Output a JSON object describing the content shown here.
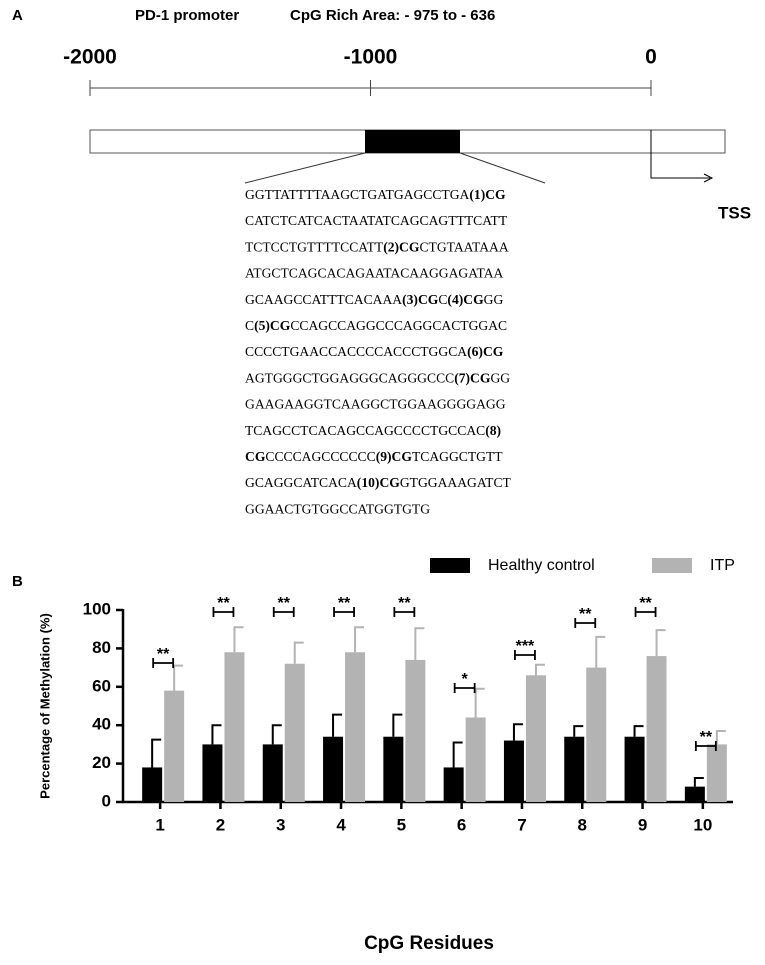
{
  "panel_a": {
    "label": "A",
    "title": "PD-1 promoter",
    "subtitle": "CpG Rich Area: - 975 to - 636",
    "ticks": [
      -2000,
      -1000,
      0
    ],
    "tss_label": "TSS",
    "sequence": [
      [
        {
          "text": "GGTTATTTTAAGCTGATGAGCCTGA",
          "bold": false
        },
        {
          "text": "(1)CG",
          "bold": true
        }
      ],
      [
        {
          "text": "CATCTCATCACTAATATCAGCAGTTTCATT",
          "bold": false
        }
      ],
      [
        {
          "text": "TCTCCTGTTTTCCATT",
          "bold": false
        },
        {
          "text": "(2)CG",
          "bold": true
        },
        {
          "text": "CTGTAATAAA",
          "bold": false
        }
      ],
      [
        {
          "text": "ATGCTCAGCACAGAATACAAGGAGATAA",
          "bold": false
        }
      ],
      [
        {
          "text": "GCAAGCCATTTCACAAA",
          "bold": false
        },
        {
          "text": "(3)CG",
          "bold": true
        },
        {
          "text": "C",
          "bold": false
        },
        {
          "text": "(4)CG",
          "bold": true
        },
        {
          "text": "GG",
          "bold": false
        }
      ],
      [
        {
          "text": "C",
          "bold": false
        },
        {
          "text": "(5)CG",
          "bold": true
        },
        {
          "text": "CCAGCCAGGCCCAGGCACTGGAC",
          "bold": false
        }
      ],
      [
        {
          "text": "CCCCTGAACCACCCCACCCTGGCA",
          "bold": false
        },
        {
          "text": "(6)CG",
          "bold": true
        }
      ],
      [
        {
          "text": "AGTGGGCTGGAGGGCAGGGCCC",
          "bold": false
        },
        {
          "text": "(7)CG",
          "bold": true
        },
        {
          "text": "GG",
          "bold": false
        }
      ],
      [
        {
          "text": "GAAGAAGGTCAAGGCTGGAAGGGGAGG",
          "bold": false
        }
      ],
      [
        {
          "text": "TCAGCCTCACAGCCAGCCCCTGCCAC",
          "bold": false
        },
        {
          "text": "(8)",
          "bold": true
        }
      ],
      [
        {
          "text": "CG",
          "bold": true
        },
        {
          "text": "CCCCAGCCCCCC",
          "bold": false
        },
        {
          "text": "(9)CG",
          "bold": true
        },
        {
          "text": "TCAGGCTGTT",
          "bold": false
        }
      ],
      [
        {
          "text": "GCAGGCATCACA",
          "bold": false
        },
        {
          "text": "(10)CG",
          "bold": true
        },
        {
          "text": "GTGGAAAGATCT",
          "bold": false
        }
      ],
      [
        {
          "text": "GGAACTGTGGCCATGGTGTG",
          "bold": false
        }
      ]
    ]
  },
  "chart_data": {
    "type": "bar",
    "panel_label": "B",
    "x_label": "CpG Residues",
    "y_label": "Percentage of Methylation (%)",
    "categories": [
      "1",
      "2",
      "3",
      "4",
      "5",
      "6",
      "7",
      "8",
      "9",
      "10"
    ],
    "series": [
      {
        "name": "Healthy control",
        "color": "#000000",
        "values": [
          18,
          30,
          30,
          34,
          34,
          18,
          32,
          34,
          34,
          8
        ],
        "errors": [
          14.5,
          10,
          10,
          11.5,
          11.5,
          13,
          8.5,
          5.5,
          5.5,
          4.5
        ]
      },
      {
        "name": "ITP",
        "color": "#b3b3b3",
        "values": [
          58,
          78,
          72,
          78,
          74,
          44,
          66,
          70,
          76,
          30
        ],
        "errors": [
          13,
          13,
          11,
          13,
          16.5,
          15,
          5.5,
          16,
          13.5,
          7
        ]
      }
    ],
    "significance": [
      "**",
      "**",
      "**",
      "**",
      "**",
      "*",
      "***",
      "**",
      "**",
      "**"
    ],
    "ylim": [
      0,
      100
    ],
    "yticks": [
      0,
      20,
      40,
      60,
      80,
      100
    ],
    "legend": "top"
  }
}
